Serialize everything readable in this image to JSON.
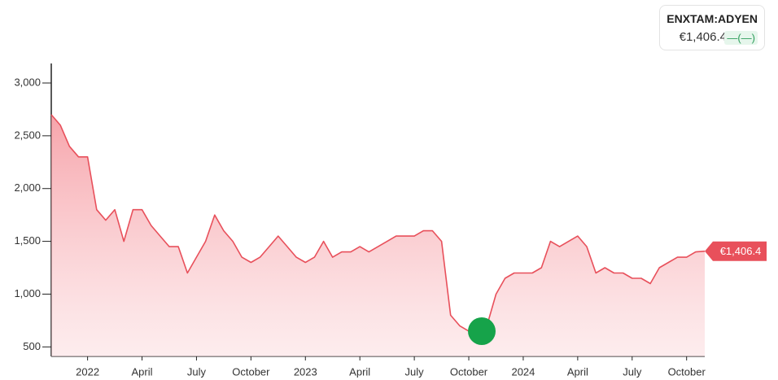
{
  "chart_data": {
    "type": "area",
    "symbol": "ENXTAM:ADYEN",
    "price_label": "€1,406.4",
    "change_label": "—(—)",
    "color": "#e8505b",
    "categories": [
      null,
      null,
      null,
      null,
      "2022",
      null,
      null,
      null,
      null,
      null,
      "April",
      null,
      null,
      null,
      null,
      null,
      "July",
      null,
      null,
      null,
      null,
      null,
      "October",
      null,
      null,
      null,
      null,
      null,
      "2023",
      null,
      null,
      null,
      null,
      null,
      "April",
      null,
      null,
      null,
      null,
      null,
      "July",
      null,
      null,
      null,
      null,
      null,
      "October",
      null,
      null,
      null,
      null,
      null,
      "2024",
      null,
      null,
      null,
      null,
      null,
      "April",
      null,
      null,
      null,
      null,
      null,
      "July",
      null,
      null,
      null,
      null,
      null,
      "October",
      null,
      null
    ],
    "values": [
      2700,
      2600,
      2400,
      2300,
      2300,
      1800,
      1700,
      1800,
      1500,
      1800,
      1800,
      1650,
      1550,
      1450,
      1450,
      1200,
      1350,
      1500,
      1750,
      1600,
      1500,
      1350,
      1300,
      1350,
      1450,
      1550,
      1450,
      1350,
      1300,
      1350,
      1500,
      1350,
      1400,
      1400,
      1450,
      1400,
      1450,
      1500,
      1550,
      1550,
      1550,
      1600,
      1600,
      1500,
      800,
      700,
      650,
      650,
      700,
      1000,
      1150,
      1200,
      1200,
      1200,
      1250,
      1500,
      1450,
      1500,
      1550,
      1450,
      1200,
      1250,
      1200,
      1200,
      1150,
      1150,
      1100,
      1250,
      1300,
      1350,
      1350,
      1400,
      1406.4
    ],
    "ylim": [
      410,
      3185
    ],
    "yticks": [
      500,
      {
        "value": 1000,
        "label": "1,000"
      },
      {
        "value": 1500,
        "label": "1,500"
      },
      {
        "value": 2000,
        "label": "2,000"
      },
      {
        "value": 2500,
        "label": "2,500"
      },
      {
        "value": 3000,
        "label": "3,000"
      }
    ]
  }
}
